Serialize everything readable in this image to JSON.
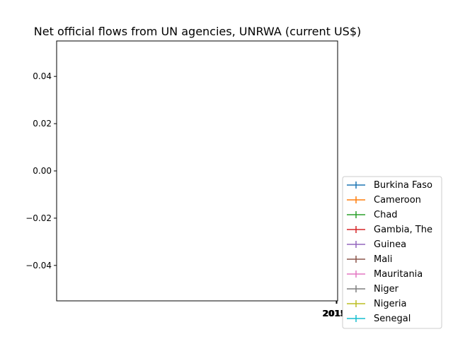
{
  "chart_data": {
    "type": "line",
    "title": "Net official flows from UN agencies, UNRWA (current US$)",
    "xlabel": "",
    "ylabel": "",
    "x_ticks": [
      "2015",
      "2016"
    ],
    "y_ticks": [
      0.04,
      0.02,
      0.0,
      -0.02,
      -0.04
    ],
    "y_tick_labels": [
      "0.04",
      "0.02",
      "0.00",
      "−0.02",
      "−0.04"
    ],
    "ylim": [
      -0.055,
      0.055
    ],
    "grid": false,
    "legend_position": "lower-right, outside plot",
    "series": [
      {
        "name": "Burkina Faso",
        "color": "#1f77b4",
        "values": []
      },
      {
        "name": "Cameroon",
        "color": "#ff7f0e",
        "values": []
      },
      {
        "name": "Chad",
        "color": "#2ca02c",
        "values": []
      },
      {
        "name": "Gambia, The",
        "color": "#d62728",
        "values": []
      },
      {
        "name": "Guinea",
        "color": "#9467bd",
        "values": []
      },
      {
        "name": "Mali",
        "color": "#8c564b",
        "values": []
      },
      {
        "name": "Mauritania",
        "color": "#e377c2",
        "values": []
      },
      {
        "name": "Niger",
        "color": "#7f7f7f",
        "values": []
      },
      {
        "name": "Nigeria",
        "color": "#bcbd22",
        "values": []
      },
      {
        "name": "Senegal",
        "color": "#17becf",
        "values": []
      }
    ]
  }
}
